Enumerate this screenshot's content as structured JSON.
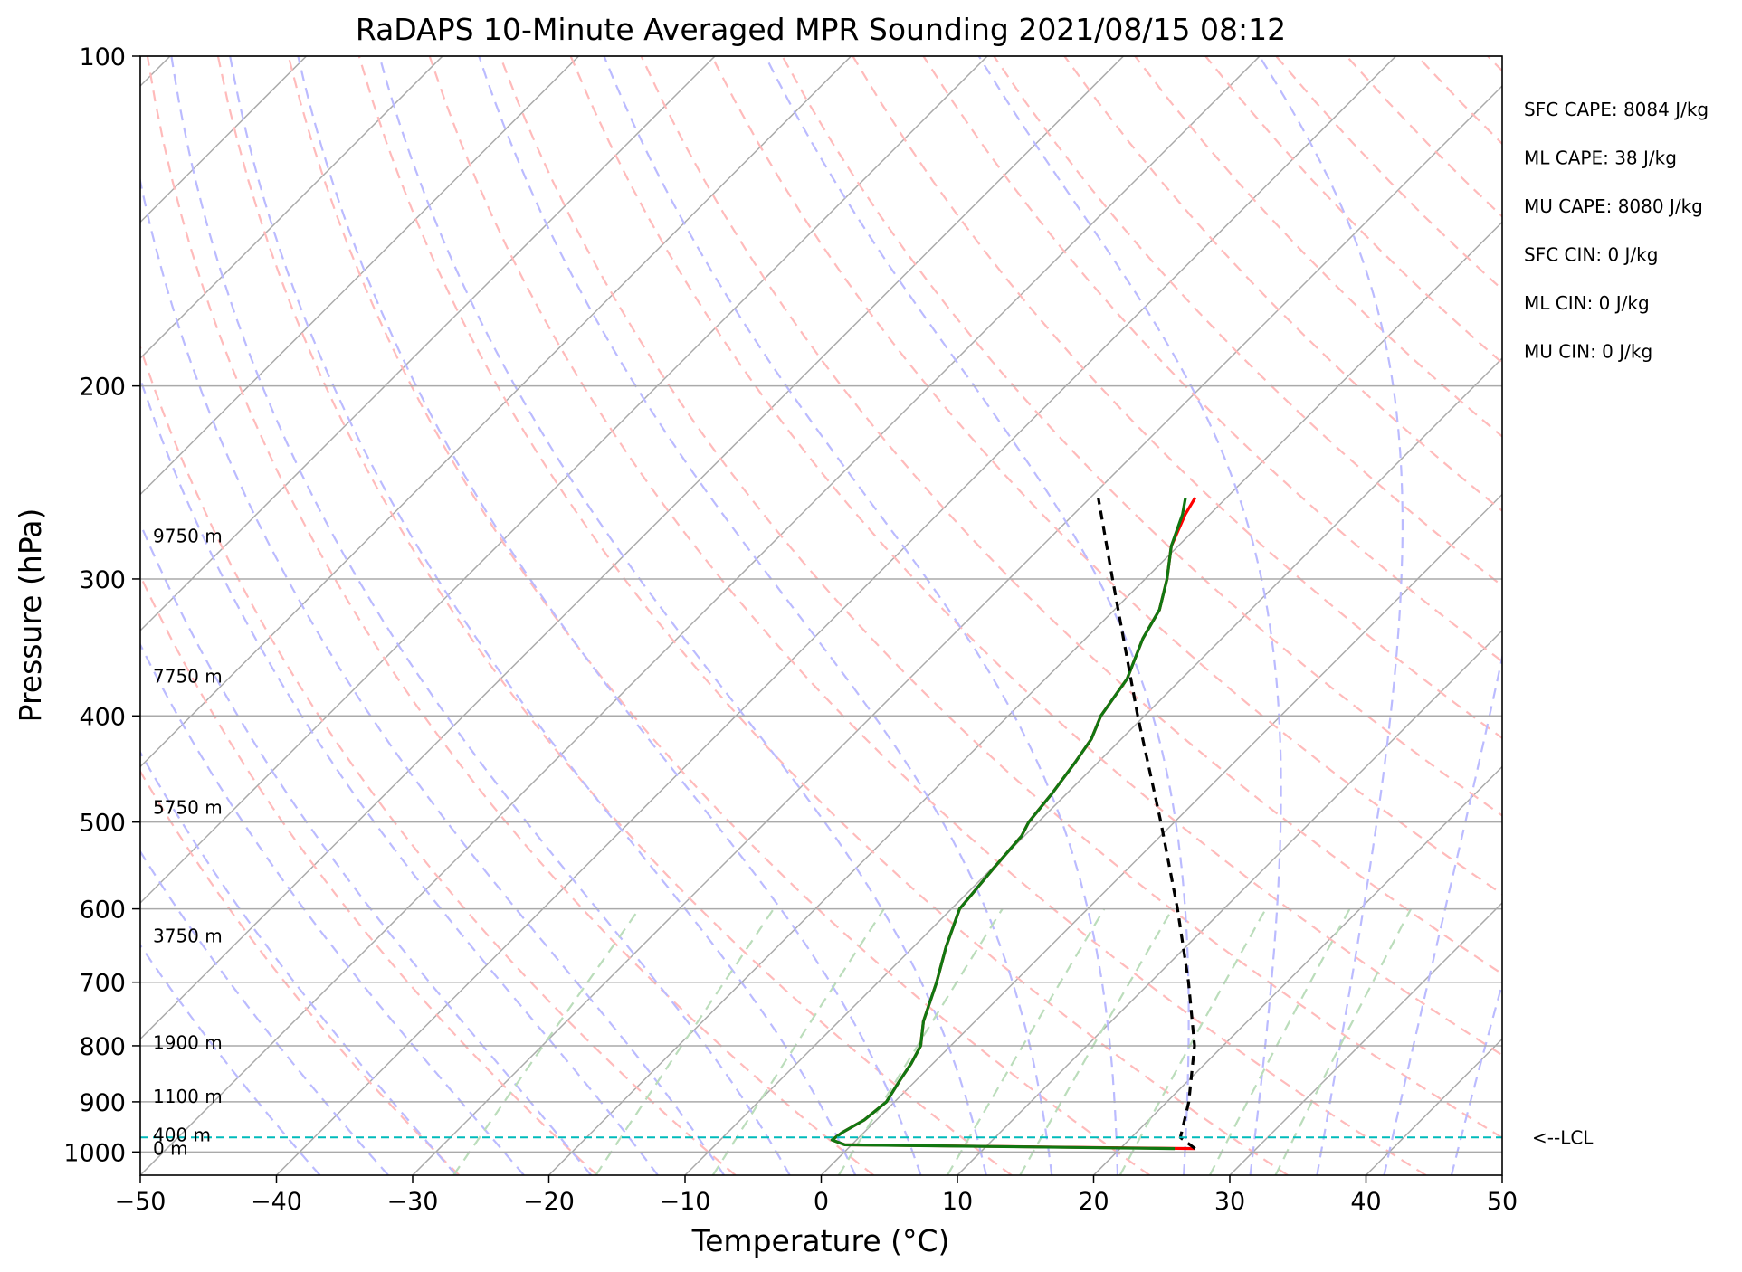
{
  "chart_data": {
    "type": "skew-t log-p",
    "title": "RaDAPS 10-Minute Averaged MPR Sounding 2021/08/15 08:12",
    "xlabel": "Temperature (°C)",
    "ylabel": "Pressure (hPa)",
    "xlim": [
      -50,
      50
    ],
    "ylim": [
      1050,
      100
    ],
    "y_scale": "log",
    "x_ticks": [
      -50,
      -40,
      -30,
      -20,
      -10,
      0,
      10,
      20,
      30,
      40,
      50
    ],
    "x_tick_labels": [
      "−50",
      "−40",
      "−30",
      "−20",
      "−10",
      "0",
      "10",
      "20",
      "30",
      "40",
      "50"
    ],
    "y_ticks": [
      1000,
      900,
      800,
      700,
      600,
      500,
      400,
      300,
      200,
      100
    ],
    "y_tick_labels": [
      "1000",
      "900",
      "800",
      "700",
      "600",
      "500",
      "400",
      "300",
      "200",
      "100"
    ],
    "grid": true,
    "series": [
      {
        "kind": "temperature",
        "color": "#ff0000",
        "points": [
          {
            "p": 993,
            "t": 25.5
          },
          {
            "p": 985,
            "t": -0.5
          },
          {
            "p": 975,
            "t": -1.8
          },
          {
            "p": 960,
            "t": -1.6
          },
          {
            "p": 935,
            "t": -0.9
          },
          {
            "p": 900,
            "t": -0.6
          },
          {
            "p": 860,
            "t": -1.2
          },
          {
            "p": 830,
            "t": -1.6
          },
          {
            "p": 800,
            "t": -2.2
          },
          {
            "p": 760,
            "t": -3.8
          },
          {
            "p": 700,
            "t": -5.7
          },
          {
            "p": 650,
            "t": -7.6
          },
          {
            "p": 600,
            "t": -9.4
          },
          {
            "p": 550,
            "t": -9.9
          },
          {
            "p": 515,
            "t": -10.2
          },
          {
            "p": 500,
            "t": -10.7
          },
          {
            "p": 470,
            "t": -11.1
          },
          {
            "p": 440,
            "t": -11.7
          },
          {
            "p": 420,
            "t": -12.2
          },
          {
            "p": 400,
            "t": -13.2
          },
          {
            "p": 370,
            "t": -14.0
          },
          {
            "p": 340,
            "t": -15.8
          },
          {
            "p": 320,
            "t": -16.7
          },
          {
            "p": 300,
            "t": -18.4
          },
          {
            "p": 280,
            "t": -20.5
          },
          {
            "p": 262,
            "t": -21.8
          },
          {
            "p": 253,
            "t": -22.3
          }
        ]
      },
      {
        "kind": "dewpoint",
        "color": "#117711",
        "points": [
          {
            "p": 993,
            "t": 24.0
          },
          {
            "p": 985,
            "t": -0.5
          },
          {
            "p": 975,
            "t": -1.8
          },
          {
            "p": 960,
            "t": -1.6
          },
          {
            "p": 935,
            "t": -0.9
          },
          {
            "p": 900,
            "t": -0.6
          },
          {
            "p": 860,
            "t": -1.2
          },
          {
            "p": 830,
            "t": -1.6
          },
          {
            "p": 800,
            "t": -2.2
          },
          {
            "p": 760,
            "t": -3.8
          },
          {
            "p": 700,
            "t": -5.7
          },
          {
            "p": 650,
            "t": -7.6
          },
          {
            "p": 600,
            "t": -9.4
          },
          {
            "p": 550,
            "t": -9.9
          },
          {
            "p": 515,
            "t": -10.2
          },
          {
            "p": 500,
            "t": -10.7
          },
          {
            "p": 470,
            "t": -11.1
          },
          {
            "p": 440,
            "t": -11.7
          },
          {
            "p": 420,
            "t": -12.2
          },
          {
            "p": 400,
            "t": -13.2
          },
          {
            "p": 370,
            "t": -14.0
          },
          {
            "p": 340,
            "t": -15.8
          },
          {
            "p": 320,
            "t": -16.7
          },
          {
            "p": 300,
            "t": -18.4
          },
          {
            "p": 280,
            "t": -20.5
          },
          {
            "p": 262,
            "t": -22.0
          },
          {
            "p": 253,
            "t": -23.0
          }
        ]
      },
      {
        "kind": "parcel",
        "color": "#000000",
        "points": [
          {
            "p": 993,
            "t": 25.5
          },
          {
            "p": 970,
            "t": 23.6
          },
          {
            "p": 900,
            "t": 21.6
          },
          {
            "p": 800,
            "t": 17.9
          },
          {
            "p": 700,
            "t": 12.8
          },
          {
            "p": 600,
            "t": 6.6
          },
          {
            "p": 500,
            "t": -1.0
          },
          {
            "p": 400,
            "t": -10.5
          },
          {
            "p": 300,
            "t": -22.4
          },
          {
            "p": 253,
            "t": -29.4
          }
        ]
      }
    ],
    "lcl": {
      "p": 970,
      "label": "<--LCL",
      "color": "#00bbbb"
    },
    "height_labels": [
      {
        "p": 993,
        "label": "0 m"
      },
      {
        "p": 965,
        "label": "400 m"
      },
      {
        "p": 890,
        "label": "1100 m"
      },
      {
        "p": 795,
        "label": "1900 m"
      },
      {
        "p": 635,
        "label": "3750 m"
      },
      {
        "p": 485,
        "label": "5750 m"
      },
      {
        "p": 368,
        "label": "7750 m"
      },
      {
        "p": 274,
        "label": "9750 m"
      }
    ],
    "stats": [
      "SFC CAPE: 8084 J/kg",
      "ML CAPE: 38 J/kg",
      "MU CAPE: 8080 J/kg",
      "SFC CIN: 0 J/kg",
      "ML CIN: 0 J/kg",
      "MU CIN: 0 J/kg"
    ],
    "background_lines": {
      "isotherm_color": "#aaaaaa",
      "dry_adiabat_color": "#ffbbbb",
      "moist_adiabat_color": "#bbbbff",
      "mixing_ratio_color": "#bbddbb"
    }
  }
}
